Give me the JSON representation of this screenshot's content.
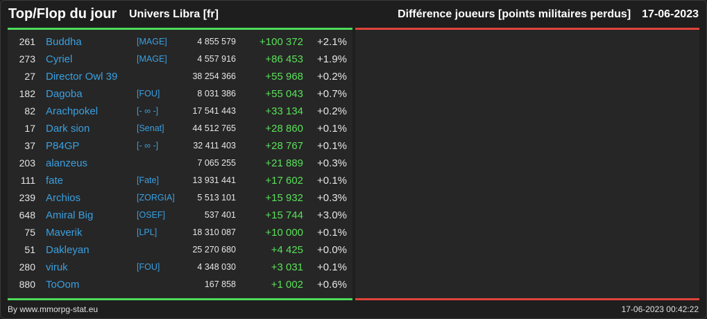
{
  "header": {
    "title": "Top/Flop du jour",
    "server": "Univers Libra [fr]",
    "metric": "Différence joueurs [points militaires perdus]",
    "date": "17-06-2023"
  },
  "colors": {
    "accent_green": "#4ddc5a",
    "accent_red": "#e0443a",
    "name_blue": "#3aa0e0"
  },
  "players": [
    {
      "rank": "261",
      "name": "Buddha",
      "ally": "[MAGE]",
      "points": "4 855 579",
      "diff": "+100 372",
      "pct": "+2.1%"
    },
    {
      "rank": "273",
      "name": "Cyriel",
      "ally": "[MAGE]",
      "points": "4 557 916",
      "diff": "+86 453",
      "pct": "+1.9%"
    },
    {
      "rank": "27",
      "name": "Director Owl 39",
      "ally": "",
      "points": "38 254 366",
      "diff": "+55 968",
      "pct": "+0.2%"
    },
    {
      "rank": "182",
      "name": "Dagoba",
      "ally": "[FOU]",
      "points": "8 031 386",
      "diff": "+55 043",
      "pct": "+0.7%"
    },
    {
      "rank": "82",
      "name": "Arachpokel",
      "ally": "[- ∞ -]",
      "points": "17 541 443",
      "diff": "+33 134",
      "pct": "+0.2%"
    },
    {
      "rank": "17",
      "name": "Dark sion",
      "ally": "[Senat]",
      "points": "44 512 765",
      "diff": "+28 860",
      "pct": "+0.1%"
    },
    {
      "rank": "37",
      "name": "P84GP",
      "ally": "[- ∞ -]",
      "points": "32 411 403",
      "diff": "+28 767",
      "pct": "+0.1%"
    },
    {
      "rank": "203",
      "name": "alanzeus",
      "ally": "",
      "points": "7 065 255",
      "diff": "+21 889",
      "pct": "+0.3%"
    },
    {
      "rank": "111",
      "name": "fate",
      "ally": "[Fate]",
      "points": "13 931 441",
      "diff": "+17 602",
      "pct": "+0.1%"
    },
    {
      "rank": "239",
      "name": "Archios",
      "ally": "[ZORGIA]",
      "points": "5 513 101",
      "diff": "+15 932",
      "pct": "+0.3%"
    },
    {
      "rank": "648",
      "name": "Amiral Big",
      "ally": "[OSEF]",
      "points": "537 401",
      "diff": "+15 744",
      "pct": "+3.0%"
    },
    {
      "rank": "75",
      "name": "Maverik",
      "ally": "[LPL]",
      "points": "18 310 087",
      "diff": "+10 000",
      "pct": "+0.1%"
    },
    {
      "rank": "51",
      "name": "Dakleyan",
      "ally": "",
      "points": "25 270 680",
      "diff": "+4 425",
      "pct": "+0.0%"
    },
    {
      "rank": "280",
      "name": "viruk",
      "ally": "[FOU]",
      "points": "4 348 030",
      "diff": "+3 031",
      "pct": "+0.1%"
    },
    {
      "rank": "880",
      "name": "ToOom",
      "ally": "",
      "points": "167 858",
      "diff": "+1 002",
      "pct": "+0.6%"
    }
  ],
  "footer": {
    "credit": "By www.mmorpg-stat.eu",
    "timestamp": "17-06-2023 00:42:22"
  }
}
